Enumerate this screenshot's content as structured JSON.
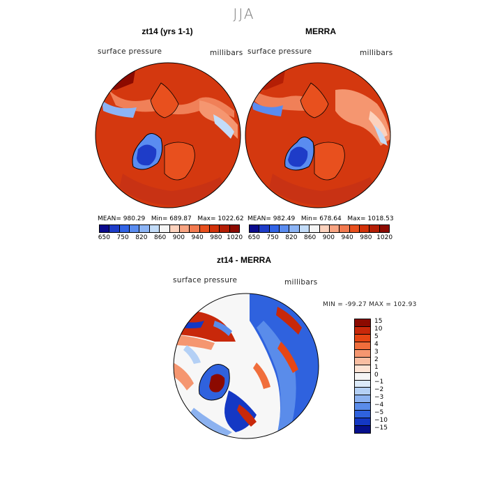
{
  "page": {
    "title": "JJA"
  },
  "panels": [
    {
      "title": "zt14 (yrs 1-1)",
      "variable": "surface pressure",
      "units": "millibars",
      "stats": {
        "mean_label": "MEAN=",
        "mean": "980.29",
        "min_label": "Min=",
        "min": "689.87",
        "max_label": "Max=",
        "max": "1022.62"
      }
    },
    {
      "title": "MERRA",
      "variable": "surface pressure",
      "units": "millibars",
      "stats": {
        "mean_label": "MEAN=",
        "mean": "982.49",
        "min_label": "Min=",
        "min": "678.64",
        "max_label": "Max=",
        "max": "1018.53"
      }
    }
  ],
  "abs_colorbar": {
    "colors": [
      "#0a0a8c",
      "#1e3cc8",
      "#3264e6",
      "#5a8cf0",
      "#8cb4f5",
      "#c3dcf8",
      "#f5f5f5",
      "#fcd2bd",
      "#f8a482",
      "#f27a50",
      "#e8501e",
      "#d2320a",
      "#b41e05",
      "#8c0a00"
    ],
    "tick_labels": [
      "650",
      "750",
      "820",
      "860",
      "900",
      "940",
      "980",
      "1020"
    ]
  },
  "diff_panel": {
    "title": "zt14 - MERRA",
    "variable": "surface pressure",
    "units": "millibars",
    "minmax": "MIN = -99.27  MAX = 102.93"
  },
  "diff_colorbar": {
    "colors": [
      "#8c0a00",
      "#c8280a",
      "#e64614",
      "#f06e3c",
      "#f59670",
      "#f9bea2",
      "#fde3d4",
      "#f5f5f5",
      "#dceaf9",
      "#b4d0f5",
      "#8cb2f0",
      "#5a8cea",
      "#2f62de",
      "#1438c4",
      "#06108c"
    ],
    "tick_labels": [
      "15",
      "10",
      "5",
      "4",
      "3",
      "2",
      "1",
      "0",
      "−1",
      "−2",
      "−3",
      "−4",
      "−5",
      "−10",
      "−15"
    ]
  }
}
